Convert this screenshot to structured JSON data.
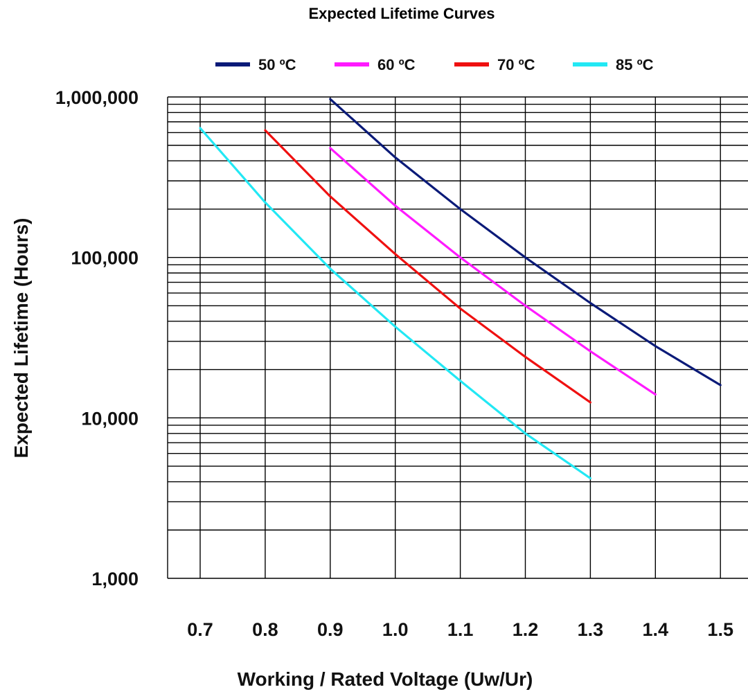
{
  "chart_data": {
    "type": "line",
    "title": "Expected Lifetime Curves",
    "xlabel": "Working / Rated Voltage (Uw/Ur)",
    "ylabel": "Expected Lifetime (Hours)",
    "xlim": [
      0.7,
      1.5
    ],
    "ylim": [
      1000,
      1000000
    ],
    "yscale": "log",
    "grid": true,
    "legend_position": "top",
    "x_ticks": [
      "0.7",
      "0.8",
      "0.9",
      "1.0",
      "1.1",
      "1.2",
      "1.3",
      "1.4",
      "1.5"
    ],
    "y_ticks": [
      {
        "value": 1000,
        "label": "1,000"
      },
      {
        "value": 10000,
        "label": "10,000"
      },
      {
        "value": 100000,
        "label": "100,000"
      },
      {
        "value": 1000000,
        "label": "1,000,000"
      }
    ],
    "series": [
      {
        "name": "50 ºC",
        "color": "#0a1a78",
        "x": [
          0.9,
          1.0,
          1.1,
          1.2,
          1.3,
          1.4,
          1.5
        ],
        "y": [
          970000,
          420000,
          200000,
          100000,
          52000,
          28000,
          16000
        ]
      },
      {
        "name": "60 ºC",
        "color": "#ff1aff",
        "x": [
          0.9,
          1.0,
          1.1,
          1.2,
          1.3,
          1.4
        ],
        "y": [
          480000,
          210000,
          100000,
          50000,
          26000,
          14000
        ]
      },
      {
        "name": "70 ºC",
        "color": "#ef1010",
        "x": [
          0.8,
          0.9,
          1.0,
          1.1,
          1.2,
          1.3
        ],
        "y": [
          620000,
          240000,
          105000,
          48000,
          24000,
          12500
        ]
      },
      {
        "name": "85 ºC",
        "color": "#22e8f4",
        "x": [
          0.7,
          0.8,
          0.9,
          1.0,
          1.1,
          1.2,
          1.3
        ],
        "y": [
          640000,
          220000,
          85000,
          37000,
          17000,
          8000,
          4200
        ]
      }
    ]
  }
}
